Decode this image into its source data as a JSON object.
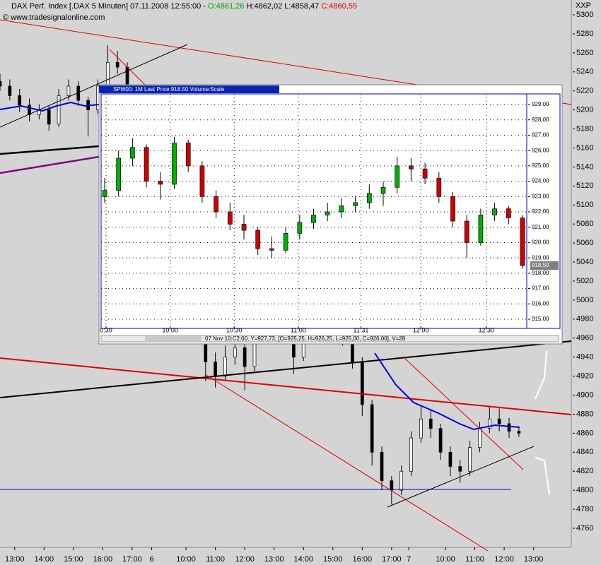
{
  "chart_data": [
    {
      "type": "candlestick",
      "title": "DAX Perf. Index [.DAX  5 Minuten] 07.11.2008 12:55:00 -",
      "open_label": "O:4861,26",
      "high_label": "H:4862,02",
      "low_label": "L:4858,47",
      "close_label": "C:4860,55",
      "source": "© www.tradesignalonline.com",
      "corner_label": "XXP",
      "up_color": "#ffffff",
      "down_color": "#000000",
      "x": [
        0,
        4,
        8,
        12,
        16,
        20,
        24,
        28,
        32,
        36,
        40,
        44,
        48,
        52,
        56,
        60,
        64,
        68,
        72,
        76,
        80,
        84,
        88,
        92,
        96,
        100,
        104,
        108,
        112,
        116,
        120,
        124,
        128,
        132,
        136,
        140,
        144,
        148,
        152,
        156,
        160,
        164,
        168,
        172,
        176,
        180,
        184,
        188,
        192,
        196,
        200,
        204,
        208,
        212
      ],
      "values": [
        [
          5230,
          5238,
          5220,
          5225
        ],
        [
          5225,
          5232,
          5210,
          5215
        ],
        [
          5215,
          5222,
          5198,
          5205
        ],
        [
          5205,
          5212,
          5188,
          5195
        ],
        [
          5195,
          5206,
          5190,
          5200
        ],
        [
          5200,
          5204,
          5178,
          5185
        ],
        [
          5185,
          5222,
          5182,
          5215
        ],
        [
          5215,
          5232,
          5210,
          5225
        ],
        [
          5225,
          5230,
          5204,
          5210
        ],
        [
          5210,
          5214,
          5172,
          5200
        ],
        [
          5200,
          5232,
          5196,
          5225
        ],
        [
          5225,
          5268,
          5220,
          5250
        ],
        [
          5250,
          5262,
          5238,
          5245
        ],
        [
          5245,
          5250,
          5140,
          5150
        ],
        [
          5150,
          5158,
          5112,
          5120
        ],
        [
          5120,
          5126,
          5082,
          5090
        ],
        [
          5090,
          5096,
          5052,
          5060
        ],
        [
          5060,
          5068,
          5032,
          5040
        ],
        [
          5040,
          5046,
          5002,
          5010
        ],
        [
          5010,
          5018,
          4982,
          4990
        ],
        [
          4990,
          4996,
          4960,
          4970
        ],
        [
          4970,
          4975,
          4915,
          4935
        ],
        [
          4935,
          4945,
          4908,
          4920
        ],
        [
          4920,
          4952,
          4915,
          4940
        ],
        [
          4940,
          4962,
          4932,
          4950
        ],
        [
          4950,
          4955,
          4905,
          4930
        ],
        [
          4930,
          4966,
          4925,
          4960
        ],
        [
          4960,
          4982,
          4955,
          4975
        ],
        [
          4975,
          4996,
          4968,
          4990
        ],
        [
          4990,
          4994,
          4962,
          4970
        ],
        [
          4970,
          4975,
          4922,
          4940
        ],
        [
          4940,
          4966,
          4936,
          4960
        ],
        [
          4960,
          4992,
          4955,
          4985
        ],
        [
          4985,
          4998,
          4980,
          4990
        ],
        [
          4990,
          4995,
          4968,
          4975
        ],
        [
          4975,
          4980,
          4952,
          4960
        ],
        [
          4960,
          4965,
          4928,
          4935
        ],
        [
          4935,
          4940,
          4878,
          4890
        ],
        [
          4890,
          4895,
          4826,
          4840
        ],
        [
          4840,
          4846,
          4800,
          4810
        ],
        [
          4810,
          4815,
          4785,
          4800
        ],
        [
          4800,
          4826,
          4795,
          4820
        ],
        [
          4820,
          4862,
          4815,
          4855
        ],
        [
          4855,
          4888,
          4850,
          4875
        ],
        [
          4875,
          4884,
          4855,
          4865
        ],
        [
          4865,
          4870,
          4832,
          4840
        ],
        [
          4840,
          4846,
          4815,
          4825
        ],
        [
          4825,
          4832,
          4808,
          4820
        ],
        [
          4820,
          4852,
          4815,
          4845
        ],
        [
          4845,
          4872,
          4840,
          4865
        ],
        [
          4865,
          4888,
          4860,
          4875
        ],
        [
          4875,
          4886,
          4862,
          4870
        ],
        [
          4870,
          4876,
          4855,
          4862
        ],
        [
          4862,
          4866,
          4856,
          4860
        ]
      ],
      "xlim": [
        0,
        234
      ],
      "xticks": [
        {
          "value": 6,
          "label": "13:00"
        },
        {
          "value": 18,
          "label": "14:00"
        },
        {
          "value": 30,
          "label": "15:00"
        },
        {
          "value": 42,
          "label": "16:00"
        },
        {
          "value": 54,
          "label": "17:00"
        },
        {
          "value": 62,
          "label": "6"
        },
        {
          "value": 76,
          "label": "10:00"
        },
        {
          "value": 88,
          "label": "11:00"
        },
        {
          "value": 100,
          "label": "12:00"
        },
        {
          "value": 112,
          "label": "13:00"
        },
        {
          "value": 124,
          "label": "14:00"
        },
        {
          "value": 136,
          "label": "15:00"
        },
        {
          "value": 148,
          "label": "16:00"
        },
        {
          "value": 160,
          "label": "17:00"
        },
        {
          "value": 167,
          "label": "7"
        },
        {
          "value": 182,
          "label": "10:00"
        },
        {
          "value": 194,
          "label": "11:00"
        },
        {
          "value": 206,
          "label": "12:00"
        },
        {
          "value": 218,
          "label": "13:00"
        }
      ],
      "ylim": [
        4760,
        5300
      ],
      "yticks": [
        4760,
        4780,
        4800,
        4820,
        4840,
        4860,
        4880,
        4900,
        4920,
        4940,
        4960,
        4980,
        5000,
        5020,
        5040,
        5060,
        5080,
        5100,
        5120,
        5140,
        5160,
        5180,
        5200,
        5220,
        5240,
        5260,
        5280,
        5300
      ],
      "grid": false
    },
    {
      "type": "candlestick",
      "title": "SPI600: 1M Last Price:918.50 Volume:Scale",
      "status": "07 Nov 10:C2:00, Y=927,73, [O=925,25, H=926,25, L=925,00, C=926,00], V=28",
      "up_color": "#00b000",
      "down_color": "#d00000",
      "last_price": {
        "value": 918.5,
        "label": "918,50"
      },
      "x": [
        0,
        1,
        2,
        3,
        4,
        5,
        6,
        7,
        8,
        9,
        10,
        11,
        12,
        13,
        14,
        15,
        16,
        17,
        18,
        19,
        20,
        21,
        22,
        23,
        24,
        25,
        26,
        27,
        28,
        29,
        30
      ],
      "values": [
        [
          923.0,
          924.2,
          922.6,
          923.4
        ],
        [
          923.4,
          926.0,
          923.0,
          925.5
        ],
        [
          925.5,
          926.8,
          925.0,
          926.2
        ],
        [
          926.2,
          926.4,
          923.6,
          924.0
        ],
        [
          924.0,
          924.6,
          922.8,
          923.8
        ],
        [
          923.8,
          926.9,
          923.5,
          926.5
        ],
        [
          926.5,
          926.7,
          924.6,
          925.0
        ],
        [
          925.0,
          925.3,
          922.6,
          923.0
        ],
        [
          923.0,
          923.4,
          921.6,
          922.0
        ],
        [
          922.0,
          922.6,
          920.8,
          921.2
        ],
        [
          921.2,
          921.8,
          920.2,
          920.8
        ],
        [
          920.8,
          921.0,
          919.2,
          919.6
        ],
        [
          919.6,
          920.4,
          919.0,
          919.5
        ],
        [
          919.5,
          921.0,
          919.3,
          920.6
        ],
        [
          920.6,
          921.8,
          920.2,
          921.3
        ],
        [
          921.3,
          922.2,
          920.9,
          921.8
        ],
        [
          921.8,
          922.6,
          921.4,
          922.0
        ],
        [
          922.0,
          922.9,
          921.6,
          922.4
        ],
        [
          922.4,
          923.0,
          922.0,
          922.6
        ],
        [
          922.6,
          923.8,
          922.2,
          923.2
        ],
        [
          923.2,
          924.0,
          922.4,
          923.6
        ],
        [
          923.6,
          925.6,
          923.2,
          925.0
        ],
        [
          925.0,
          925.5,
          924.0,
          924.8
        ],
        [
          924.8,
          925.2,
          923.8,
          924.2
        ],
        [
          924.2,
          924.6,
          922.6,
          923.0
        ],
        [
          923.0,
          923.3,
          921.0,
          921.4
        ],
        [
          921.4,
          921.8,
          919.0,
          920.0
        ],
        [
          920.0,
          922.2,
          919.8,
          921.8
        ],
        [
          921.8,
          922.6,
          921.4,
          922.2
        ],
        [
          922.2,
          922.4,
          921.2,
          921.6
        ],
        [
          921.6,
          921.8,
          918.3,
          918.5
        ]
      ],
      "xlim": [
        0,
        30
      ],
      "xticks": [
        {
          "value": 0.1,
          "label": "0:30"
        },
        {
          "value": 4.7,
          "label": "10:00"
        },
        {
          "value": 9.3,
          "label": "10:30"
        },
        {
          "value": 13.9,
          "label": "11:00"
        },
        {
          "value": 18.4,
          "label": "11:31"
        },
        {
          "value": 22.7,
          "label": "12:00"
        },
        {
          "value": 27.4,
          "label": "12:30"
        }
      ],
      "ylim": [
        915,
        929
      ],
      "yticks": [
        {
          "value": 929,
          "label": "929,00"
        },
        {
          "value": 928,
          "label": "928,00"
        },
        {
          "value": 927,
          "label": "927,00"
        },
        {
          "value": 926,
          "label": "926,00"
        },
        {
          "value": 925,
          "label": "925,00"
        },
        {
          "value": 924,
          "label": "924,00"
        },
        {
          "value": 923,
          "label": "923,00"
        },
        {
          "value": 922,
          "label": "922,00"
        },
        {
          "value": 921,
          "label": "921,00"
        },
        {
          "value": 920,
          "label": "920,00"
        },
        {
          "value": 919,
          "label": "919,00"
        },
        {
          "value": 918,
          "label": "918,00"
        },
        {
          "value": 917,
          "label": "917,00"
        },
        {
          "value": 916,
          "label": "916,00"
        },
        {
          "value": 915,
          "label": "915,00"
        }
      ],
      "grid": true
    }
  ]
}
